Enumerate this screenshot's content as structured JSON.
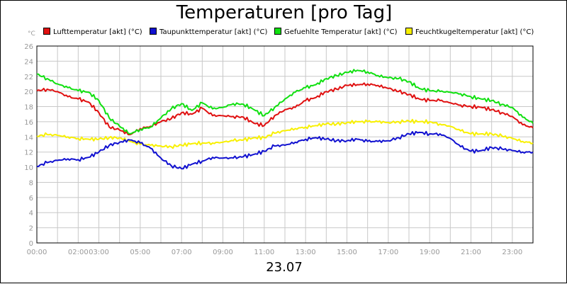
{
  "chart_data": {
    "type": "line",
    "title": "Temperaturen [pro Tag]",
    "footer_label": "23.07",
    "y_unit": "°C",
    "ylim": [
      0,
      26
    ],
    "y_ticks": [
      "0",
      "2",
      "4",
      "6",
      "8",
      "10",
      "12",
      "14",
      "16",
      "18",
      "20",
      "22",
      "24",
      "26"
    ],
    "xlim": [
      0,
      24
    ],
    "x_ticks": [
      {
        "h": 0,
        "label": "00:00"
      },
      {
        "h": 2,
        "label": "02:00"
      },
      {
        "h": 3,
        "label": "03:00"
      },
      {
        "h": 5,
        "label": "05:00"
      },
      {
        "h": 7,
        "label": "07:00"
      },
      {
        "h": 9,
        "label": "09:00"
      },
      {
        "h": 11,
        "label": "11:00"
      },
      {
        "h": 13,
        "label": "13:00"
      },
      {
        "h": 15,
        "label": "15:00"
      },
      {
        "h": 17,
        "label": "17:00"
      },
      {
        "h": 19,
        "label": "19:00"
      },
      {
        "h": 21,
        "label": "21:00"
      },
      {
        "h": 23,
        "label": "23:00"
      }
    ],
    "grid": true,
    "legend_position": "top",
    "x": [
      0,
      0.5,
      1,
      1.5,
      2,
      2.5,
      3,
      3.5,
      4,
      4.5,
      5,
      5.5,
      6,
      6.5,
      7,
      7.5,
      8,
      8.5,
      9,
      9.5,
      10,
      10.5,
      11,
      11.5,
      12,
      12.5,
      13,
      13.5,
      14,
      14.5,
      15,
      15.5,
      16,
      16.5,
      17,
      17.5,
      18,
      18.5,
      19,
      19.5,
      20,
      20.5,
      21,
      21.5,
      22,
      22.5,
      23,
      23.5,
      24
    ],
    "series": [
      {
        "name": "Lufttemperatur [akt] (°C)",
        "color": "#e01010",
        "values": [
          20.1,
          20.3,
          20.0,
          19.3,
          19.0,
          18.6,
          17.2,
          15.3,
          14.9,
          14.3,
          15.1,
          15.4,
          16.0,
          16.4,
          17.2,
          17.0,
          17.8,
          16.8,
          16.8,
          16.7,
          16.6,
          15.8,
          15.5,
          16.8,
          17.6,
          17.9,
          18.8,
          19.2,
          20.0,
          20.3,
          20.8,
          20.9,
          21.0,
          20.8,
          20.4,
          20.0,
          19.6,
          19.0,
          18.8,
          18.8,
          18.5,
          18.2,
          18.0,
          17.9,
          17.6,
          17.2,
          16.7,
          15.6,
          15.2
        ]
      },
      {
        "name": "Taupunkttemperatur [akt] (°C)",
        "color": "#1010d0",
        "values": [
          10.1,
          10.6,
          10.9,
          11.1,
          11.0,
          11.3,
          12.0,
          12.9,
          13.3,
          13.6,
          13.2,
          12.5,
          11.2,
          10.2,
          9.8,
          10.4,
          10.8,
          11.3,
          11.2,
          11.2,
          11.4,
          11.7,
          12.1,
          12.8,
          12.9,
          13.3,
          13.7,
          13.9,
          13.7,
          13.5,
          13.5,
          13.7,
          13.4,
          13.4,
          13.5,
          13.9,
          14.4,
          14.6,
          14.4,
          14.4,
          13.8,
          12.7,
          12.1,
          12.2,
          12.6,
          12.4,
          12.2,
          12.0,
          12.0
        ]
      },
      {
        "name": "Gefuehlte Temperatur [akt] (°C)",
        "color": "#10e010",
        "values": [
          22.3,
          21.7,
          21.0,
          20.5,
          20.1,
          19.9,
          18.8,
          16.5,
          15.4,
          14.4,
          15.0,
          15.3,
          16.5,
          17.7,
          18.4,
          17.5,
          18.5,
          17.7,
          17.9,
          18.4,
          18.3,
          17.6,
          16.8,
          17.9,
          19.0,
          19.9,
          20.5,
          20.9,
          21.7,
          22.1,
          22.5,
          22.8,
          22.6,
          22.1,
          21.8,
          21.7,
          21.3,
          20.4,
          20.1,
          20.0,
          19.9,
          19.7,
          19.3,
          19.0,
          18.8,
          18.3,
          17.9,
          16.6,
          15.8
        ]
      },
      {
        "name": "Feuchtkugeltemperatur [akt] (°C)",
        "color": "#f8f000",
        "values": [
          14.1,
          14.3,
          14.2,
          14.0,
          13.8,
          13.7,
          13.7,
          13.9,
          13.9,
          13.4,
          13.0,
          12.9,
          12.8,
          12.7,
          12.9,
          13.1,
          13.2,
          13.2,
          13.3,
          13.5,
          13.6,
          13.9,
          13.9,
          14.5,
          14.8,
          15.1,
          15.3,
          15.5,
          15.7,
          15.7,
          15.9,
          16.0,
          16.0,
          16.0,
          15.9,
          16.0,
          16.1,
          16.0,
          16.0,
          15.7,
          15.4,
          14.8,
          14.4,
          14.4,
          14.4,
          14.1,
          13.8,
          13.4,
          13.2
        ]
      }
    ]
  }
}
